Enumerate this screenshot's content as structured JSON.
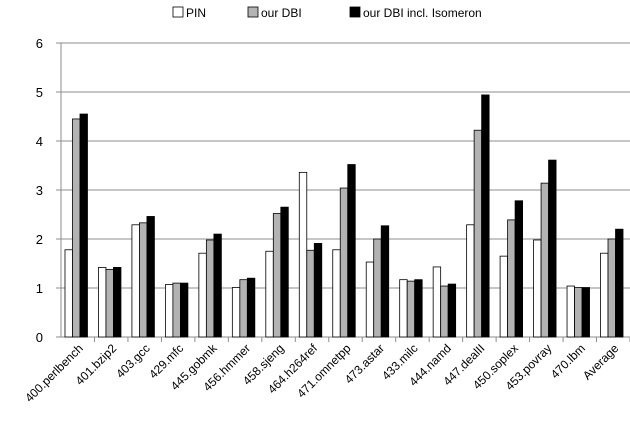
{
  "chart_data": {
    "type": "bar",
    "title": "",
    "xlabel": "",
    "ylabel": "",
    "ylim": [
      0,
      6
    ],
    "yticks": [
      0,
      1,
      2,
      3,
      4,
      5,
      6
    ],
    "grid": true,
    "legend_position": "top",
    "categories": [
      "400.perlbench",
      "401.bzip2",
      "403.gcc",
      "429.mfc",
      "445.gobmk",
      "456.hmmer",
      "458.sjeng",
      "464.h264ref",
      "471.omnetpp",
      "473.astar",
      "433.milc",
      "444.namd",
      "447.dealII",
      "450.soplex",
      "453.povray",
      "470.lbm",
      "Average"
    ],
    "series": [
      {
        "name": "PIN",
        "color": "#ffffff",
        "values": [
          1.78,
          1.42,
          2.29,
          1.07,
          1.71,
          1.01,
          1.75,
          3.36,
          1.78,
          1.53,
          1.17,
          1.43,
          2.29,
          1.65,
          1.98,
          1.04,
          1.71
        ]
      },
      {
        "name": "our DBI",
        "color": "#b3b3b3",
        "values": [
          4.45,
          1.38,
          2.33,
          1.1,
          1.98,
          1.17,
          2.52,
          1.77,
          3.04,
          2.0,
          1.14,
          1.04,
          4.22,
          2.39,
          3.14,
          1.01,
          2.0
        ]
      },
      {
        "name": "our DBI incl. Isomeron",
        "color": "#000000",
        "values": [
          4.55,
          1.42,
          2.46,
          1.1,
          2.1,
          1.2,
          2.65,
          1.91,
          3.52,
          2.27,
          1.17,
          1.08,
          4.94,
          2.78,
          3.61,
          1.01,
          2.2
        ]
      }
    ]
  }
}
